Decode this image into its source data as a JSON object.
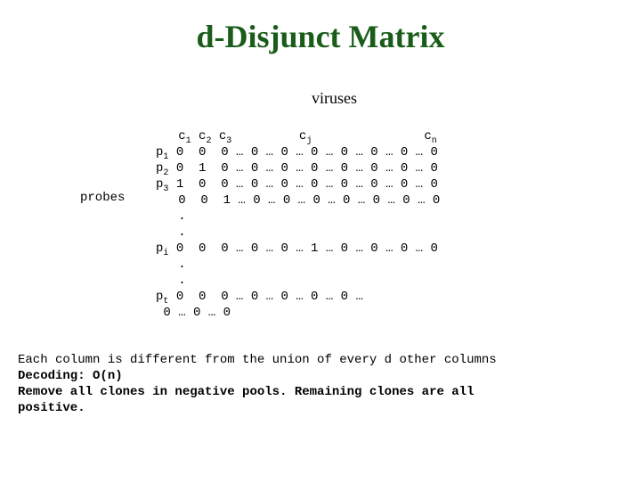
{
  "title": "d-Disjunct  Matrix",
  "top_label": "viruses",
  "side_label": "probes",
  "col_headers": {
    "c1": "c",
    "c1_sub": "1",
    "c2": "c",
    "c2_sub": "2",
    "c3": "c",
    "c3_sub": "3",
    "cj": "c",
    "cj_sub": "j",
    "cn": "c",
    "cn_sub": "n"
  },
  "row_labels": {
    "p1": "p",
    "p1_sub": "1",
    "p2": "p",
    "p2_sub": "2",
    "p3": "p",
    "p3_sub": "3",
    "pi": "p",
    "pi_sub": "i",
    "pt": "p",
    "pt_sub": "t"
  },
  "rows": {
    "r1": "0  0  0 … 0 … 0 … 0 … 0 … 0 … 0 … 0",
    "r2": "0  1  0 … 0 … 0 … 0 … 0 … 0 … 0 … 0",
    "r3": "1  0  0 … 0 … 0 … 0 … 0 … 0 … 0 … 0",
    "r4": "0  0  1 … 0 … 0 … 0 … 0 … 0 … 0 … 0",
    "ri": "0  0  0 … 0 … 0 … 1 … 0 … 0 … 0 … 0",
    "rt": "0  0  0 … 0 … 0 … 0 … 0 …",
    "last": "0 … 0 … 0"
  },
  "explain": {
    "line1": "Each column is different from the union of every d other columns",
    "line2": "Decoding: O(n)",
    "line3a": "Remove all clones in negative pools. Remaining clones are all",
    "line3b": "positive."
  }
}
